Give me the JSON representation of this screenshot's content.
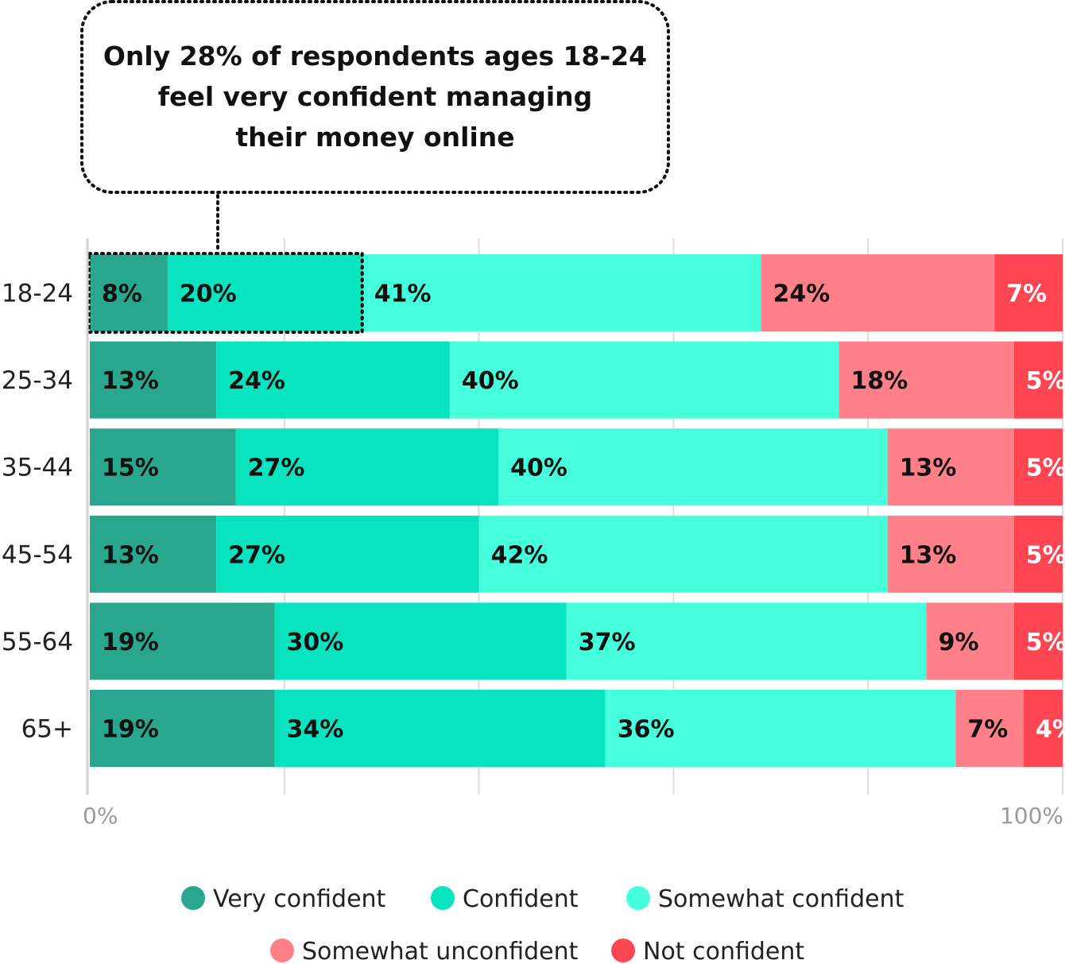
{
  "callout": {
    "lines": [
      "Only 28% of respondents ages 18-24",
      "feel very confident managing",
      "their money online"
    ]
  },
  "chart_data": {
    "type": "bar",
    "orientation": "horizontal",
    "stacked": true,
    "categories": [
      "18-24",
      "25-34",
      "35-44",
      "45-54",
      "55-64",
      "65+"
    ],
    "series": [
      {
        "name": "Very confident",
        "color": "#28a68e",
        "values": [
          8,
          13,
          15,
          13,
          19,
          19
        ]
      },
      {
        "name": "Confident",
        "color": "#08e3c0",
        "values": [
          20,
          24,
          27,
          27,
          30,
          34
        ]
      },
      {
        "name": "Somewhat confident",
        "color": "#45ffdd",
        "values": [
          41,
          40,
          40,
          42,
          37,
          36
        ]
      },
      {
        "name": "Somewhat unconfident",
        "color": "#ff8089",
        "values": [
          24,
          18,
          13,
          13,
          9,
          7
        ]
      },
      {
        "name": "Not confident",
        "color": "#ff4452",
        "values": [
          7,
          5,
          5,
          5,
          5,
          4
        ]
      }
    ],
    "label_colors": [
      "#111111",
      "#111111",
      "#111111",
      "#111111",
      "#ffffff"
    ],
    "xlim": [
      0,
      100
    ],
    "x_ticks": [
      {
        "value": 0,
        "label": "0%"
      },
      {
        "value": 100,
        "label": "100%"
      }
    ],
    "grid": true,
    "legend_position": "bottom",
    "highlight": {
      "category": "18-24",
      "series": [
        "Very confident",
        "Confident"
      ]
    }
  }
}
